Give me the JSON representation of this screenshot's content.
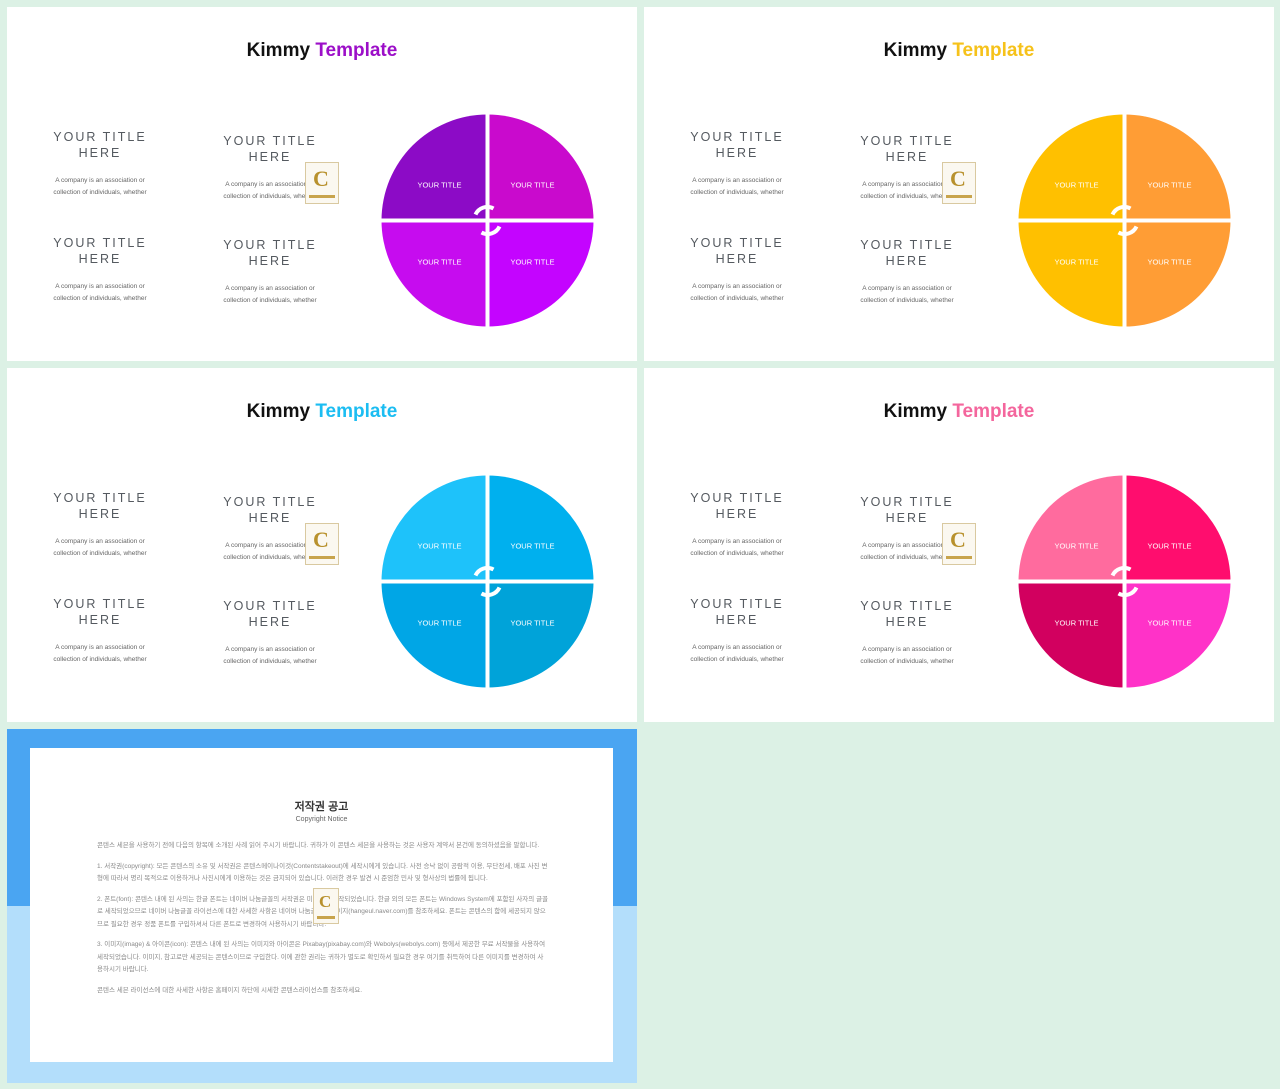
{
  "slides": [
    {
      "brand_1": "Kimmy",
      "brand_2": "Template",
      "accent": "#9c0fc8",
      "quadrant_colors": [
        "#8c0bc6",
        "#c90acd",
        "#c60cef",
        "#c404ff"
      ],
      "blocks": [
        {
          "title": "YOUR TITLE\nHERE",
          "desc": "A company is an association or\ncollection of individuals, whether"
        },
        {
          "title": "YOUR TITLE\nHERE",
          "desc": "A company is an association or\ncollection of individuals, whether"
        },
        {
          "title": "YOUR TITLE\nHERE",
          "desc": "A company is an association or\ncollection of individuals, whether"
        },
        {
          "title": "YOUR TITLE\nHERE",
          "desc": "A company is an association or\ncollection of individuals, whether"
        }
      ],
      "quadrant_labels": [
        "YOUR TITLE",
        "YOUR TITLE",
        "YOUR TITLE",
        "YOUR TITLE"
      ]
    },
    {
      "brand_1": "Kimmy",
      "brand_2": "Template",
      "accent": "#f6c21a",
      "quadrant_colors": [
        "#ffc000",
        "#ff9d35",
        "#ffc000",
        "#ff9d35"
      ],
      "blocks": [
        {
          "title": "YOUR TITLE\nHERE",
          "desc": "A company is an association or\ncollection of individuals, whether"
        },
        {
          "title": "YOUR TITLE\nHERE",
          "desc": "A company is an association or\ncollection of individuals, whether"
        },
        {
          "title": "YOUR TITLE\nHERE",
          "desc": "A company is an association or\ncollection of individuals, whether"
        },
        {
          "title": "YOUR TITLE\nHERE",
          "desc": "A company is an association or\ncollection of individuals, whether"
        }
      ],
      "quadrant_labels": [
        "YOUR TITLE",
        "YOUR TITLE",
        "YOUR TITLE",
        "YOUR TITLE"
      ]
    },
    {
      "brand_1": "Kimmy",
      "brand_2": "Template",
      "accent": "#1cbdf2",
      "quadrant_colors": [
        "#1ec2fa",
        "#00b0ee",
        "#00a6e6",
        "#00a3d9"
      ],
      "blocks": [
        {
          "title": "YOUR TITLE\nHERE",
          "desc": "A company is an association or\ncollection of individuals, whether"
        },
        {
          "title": "YOUR TITLE\nHERE",
          "desc": "A company is an association or\ncollection of individuals, whether"
        },
        {
          "title": "YOUR TITLE\nHERE",
          "desc": "A company is an association or\ncollection of individuals, whether"
        },
        {
          "title": "YOUR TITLE\nHERE",
          "desc": "A company is an association or\ncollection of individuals, whether"
        }
      ],
      "quadrant_labels": [
        "YOUR TITLE",
        "YOUR TITLE",
        "YOUR TITLE",
        "YOUR TITLE"
      ]
    },
    {
      "brand_1": "Kimmy",
      "brand_2": "Template",
      "accent": "#f4669d",
      "quadrant_colors": [
        "#ff6b9e",
        "#ff0d6e",
        "#d2005f",
        "#ff32c8"
      ],
      "blocks": [
        {
          "title": "YOUR TITLE\nHERE",
          "desc": "A company is an association or\ncollection of individuals, whether"
        },
        {
          "title": "YOUR TITLE\nHERE",
          "desc": "A company is an association or\ncollection of individuals, whether"
        },
        {
          "title": "YOUR TITLE\nHERE",
          "desc": "A company is an association or\ncollection of individuals, whether"
        },
        {
          "title": "YOUR TITLE\nHERE",
          "desc": "A company is an association or\ncollection of individuals, whether"
        }
      ],
      "quadrant_labels": [
        "YOUR TITLE",
        "YOUR TITLE",
        "YOUR TITLE",
        "YOUR TITLE"
      ]
    }
  ],
  "badge_letter": "C",
  "notice": {
    "title": "저작권 공고",
    "subtitle": "Copyright Notice",
    "paragraphs": [
      "콘텐스 세븐을 사용하기 전에 다음의 항목에 소개된 사례 읽어 주시기 바랍니다. 귀하가 이 콘텐스 세븐을 사용하는 것은 사용자 계약서 본건에 동의하셨음을 말합니다.",
      "1. 서작권(copyright): 모든 콘텐스의 소유 및 서작권은 콘텐스메이나이것(Contentstakeout)에 세작시에게 있습니다. 사전 승낙 없이 공람적 이용, 무단전세, 배포 사진 변형에 따라서 명리 목적으로 이용하거나 사진시에게 이용하는 것은 금지되어 있습니다. 이러한 경우 발견 시 준엄한 민사 및 형사상의 법률에 됩니다.",
      "2. 폰트(font): 콘텐스 내에 된 사의는 한글 폰트는 네이버 나눔글꼴의 서작권은 미래이버 세작되었습니다. 한글 외의 모든 폰트는 Windows System에 포함된 사자의 글꼴로 세작되었으므로 네이버 나눔글꼴 라이선스에 대한 사세한 사항은 네이버 나눔글꼴 홈페이지(hangeul.naver.com)를 참조하세요. 폰트는 콘텐스의 함에 세공되지 않으므로 필요한 경우 정품 폰트를 구입하셔서 다른 폰트로 변경하여 사용하시기 바랍니다.",
      "3. 이미지(image) & 아이콘(icon): 콘텐스 내에 된 사의는 이미지와 아이콘은 Pixabay(pixabay.com)와 Webolys(webolys.com) 등에서 제공한 무료 서작물을 사용하여 세작되었습니다. 이미지, 참고로만 세공되는 콘텐스이므로 구입한다. 이에 관한 권리는 귀하가 별도로 확인하셔 필요한 경우 여기를 취득하여 다른 이미지를 변경하여 사용하시기 바랍니다.",
      "콘텐스 세븐 라이선스에 대한 사세한 사항은 홈페이지 하단에 시세한 콘텐스라이선스를 참조하세요."
    ]
  }
}
